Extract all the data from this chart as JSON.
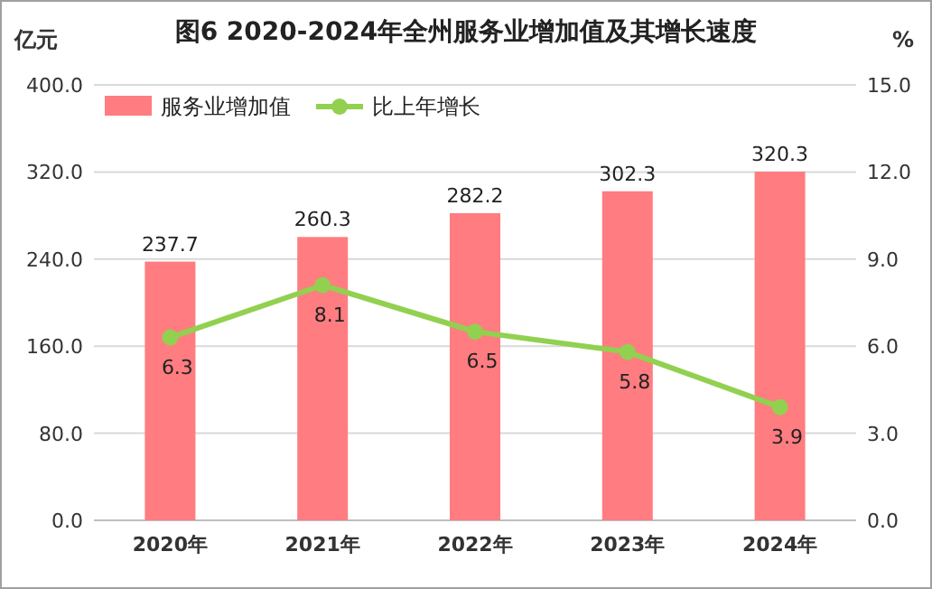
{
  "chart_data": {
    "type": "bar",
    "title": "图6  2020-2024年全州服务业增加值及其增长速度",
    "ylabel": "亿元",
    "y2label": "%",
    "categories": [
      "2020年",
      "2021年",
      "2022年",
      "2023年",
      "2024年"
    ],
    "series": [
      {
        "name": "服务业增加值",
        "color": "#ff7c80",
        "values": [
          237.7,
          260.3,
          282.2,
          302.3,
          320.3
        ]
      },
      {
        "name": "比上年增长",
        "type": "line",
        "axis": "y2",
        "color": "#92d050",
        "marker": "circle",
        "values": [
          6.3,
          8.1,
          6.5,
          5.8,
          3.9
        ]
      }
    ],
    "ylim": [
      0,
      400
    ],
    "yticks": [
      {
        "value": 0,
        "label": "0.0"
      },
      {
        "value": 80,
        "label": "80.0"
      },
      {
        "value": 160,
        "label": "160.0"
      },
      {
        "value": 240,
        "label": "240.0"
      },
      {
        "value": 320,
        "label": "320.0"
      },
      {
        "value": 400,
        "label": "400.0"
      }
    ],
    "y2lim": [
      0,
      15
    ],
    "y2ticks": [
      {
        "value": 0,
        "label": "0.0"
      },
      {
        "value": 3,
        "label": "3.0"
      },
      {
        "value": 6,
        "label": "6.0"
      },
      {
        "value": 9,
        "label": "9.0"
      },
      {
        "value": 12,
        "label": "12.0"
      },
      {
        "value": 15,
        "label": "15.0"
      }
    ],
    "grid": "y",
    "legend": "top left",
    "data_labels": true
  }
}
